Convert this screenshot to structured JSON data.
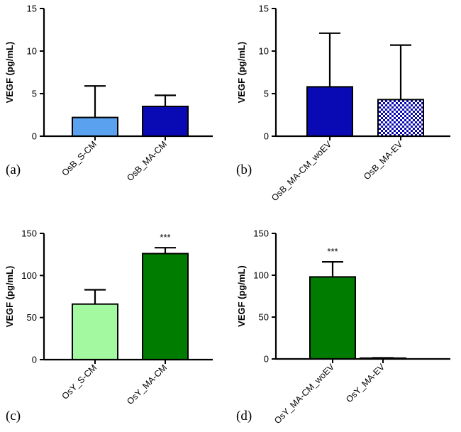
{
  "chart_data": [
    {
      "type": "bar",
      "panel_label": "(a)",
      "ylabel": "VEGF (pg/mL)",
      "ylim": [
        0,
        15
      ],
      "yticks": [
        "0",
        "5",
        "10",
        "15"
      ],
      "categories": [
        "OsB_S-CM",
        "OsB_MA-CM"
      ],
      "values": [
        2.2,
        3.5
      ],
      "errors": [
        3.7,
        1.3
      ],
      "colors": [
        "#5aa2f0",
        "#0a0ab4"
      ],
      "patterns": [
        "solid",
        "solid"
      ],
      "significance": [
        "",
        ""
      ]
    },
    {
      "type": "bar",
      "panel_label": "(b)",
      "ylabel": "VEGF (pg/mL)",
      "ylim": [
        0,
        15
      ],
      "yticks": [
        "0",
        "5",
        "10",
        "15"
      ],
      "categories": [
        "OsB_MA-CM_woEV",
        "OsB_MA-EV"
      ],
      "values": [
        5.8,
        4.3
      ],
      "errors": [
        6.3,
        6.4
      ],
      "colors": [
        "#0a0ab4",
        "#0a0ab4"
      ],
      "patterns": [
        "solid",
        "checker"
      ],
      "significance": [
        "",
        ""
      ]
    },
    {
      "type": "bar",
      "panel_label": "(c)",
      "ylabel": "VEGF (pg/mL)",
      "ylim": [
        0,
        150
      ],
      "yticks": [
        "0",
        "50",
        "100",
        "150"
      ],
      "categories": [
        "OsY_S-CM",
        "OsY_MA-CM"
      ],
      "values": [
        66,
        126
      ],
      "errors": [
        17,
        7
      ],
      "colors": [
        "#a2f9a0",
        "#007c00"
      ],
      "patterns": [
        "solid",
        "solid"
      ],
      "significance": [
        "",
        "***"
      ]
    },
    {
      "type": "bar",
      "panel_label": "(d)",
      "ylabel": "VEGF (pg/mL)",
      "ylim": [
        0,
        150
      ],
      "yticks": [
        "0",
        "50",
        "100",
        "150"
      ],
      "categories": [
        "OsY_MA-CM_woEV",
        "OsY_MA-EV"
      ],
      "values": [
        98,
        1
      ],
      "errors": [
        18,
        0.3
      ],
      "colors": [
        "#007c00",
        "#007c00"
      ],
      "patterns": [
        "solid",
        "solid"
      ],
      "significance": [
        "***",
        ""
      ]
    }
  ]
}
